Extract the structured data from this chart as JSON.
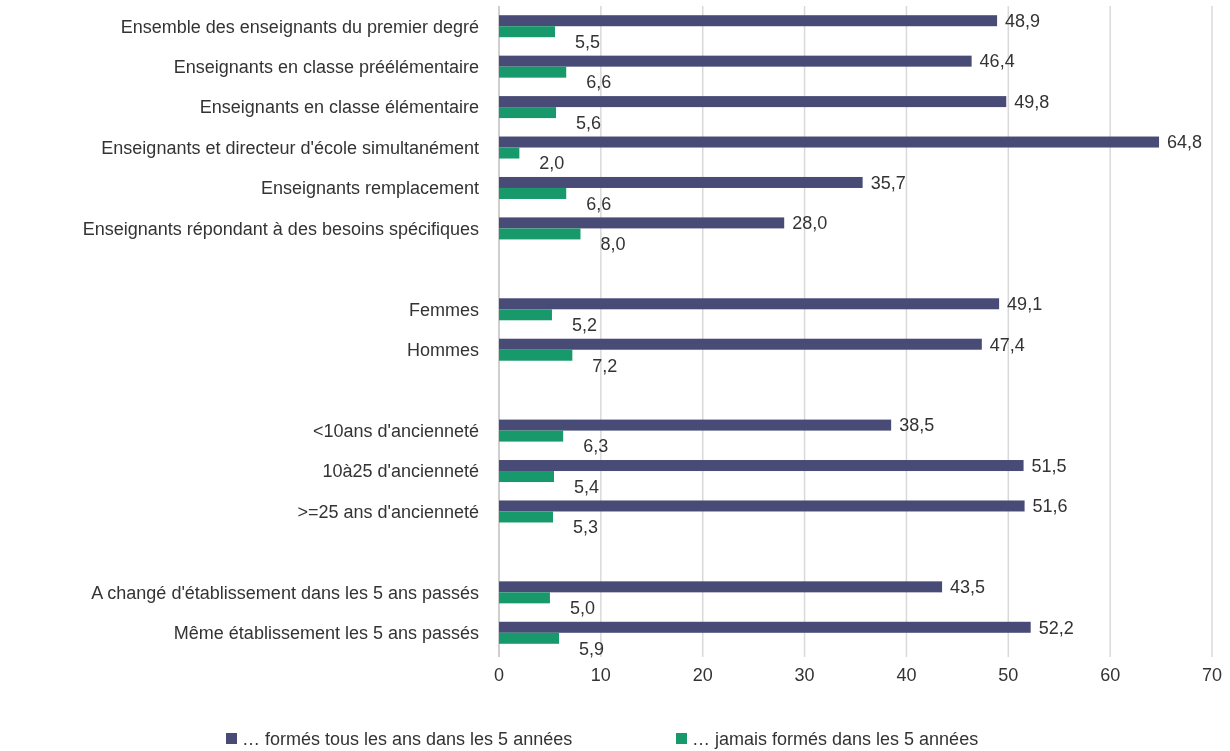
{
  "chart_data": {
    "type": "bar",
    "orientation": "horizontal",
    "categories": [
      "Ensemble des enseignants du premier degré",
      "Enseignants en classe préélémentaire",
      "Enseignants en classe élémentaire",
      "Enseignants et directeur d'école simultanément",
      "Enseignants remplacement",
      "Enseignants répondant à des besoins spécifiques",
      null,
      "Femmes",
      "Hommes",
      null,
      "<10ans d'ancienneté",
      "10à25 d'ancienneté",
      ">=25 ans d'ancienneté",
      null,
      "A changé d'établissement dans les 5 ans passés",
      "Même établissement les 5 ans passés"
    ],
    "series": [
      {
        "name": "… formés tous les ans dans les 5 années",
        "color": "#484b76",
        "values": [
          48.9,
          46.4,
          49.8,
          64.8,
          35.7,
          28.0,
          null,
          49.1,
          47.4,
          null,
          38.5,
          51.5,
          51.6,
          null,
          43.5,
          52.2
        ],
        "value_labels": [
          "48,9",
          "46,4",
          "49,8",
          "64,8",
          "35,7",
          "28,0",
          null,
          "49,1",
          "47,4",
          null,
          "38,5",
          "51,5",
          "51,6",
          null,
          "43,5",
          "52,2"
        ]
      },
      {
        "name": "… jamais formés dans les 5 années",
        "color": "#18996b",
        "values": [
          5.5,
          6.6,
          5.6,
          2.0,
          6.6,
          8.0,
          null,
          5.2,
          7.2,
          null,
          6.3,
          5.4,
          5.3,
          null,
          5.0,
          5.9
        ],
        "value_labels": [
          "5,5",
          "6,6",
          "5,6",
          "2,0",
          "6,6",
          "8,0",
          null,
          "5,2",
          "7,2",
          null,
          "6,3",
          "5,4",
          "5,3",
          null,
          "5,0",
          "5,9"
        ]
      }
    ],
    "xlim": [
      0,
      70
    ],
    "xticks": [
      0,
      10,
      20,
      30,
      40,
      50,
      60,
      70
    ],
    "grid": "x",
    "legend": "bottom"
  }
}
